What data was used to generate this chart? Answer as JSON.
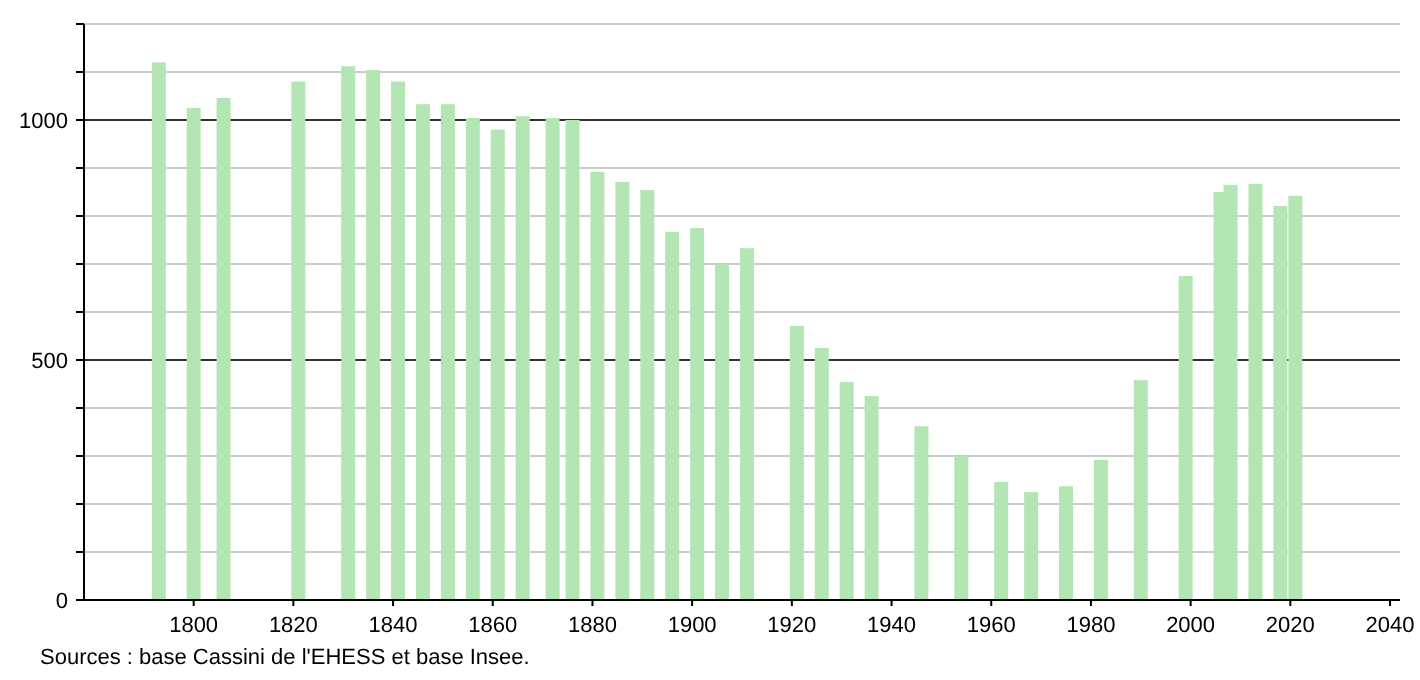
{
  "chart_data": {
    "type": "bar",
    "x": [
      1793,
      1800,
      1806,
      1821,
      1831,
      1836,
      1841,
      1846,
      1851,
      1856,
      1861,
      1866,
      1872,
      1876,
      1881,
      1886,
      1891,
      1896,
      1901,
      1906,
      1911,
      1921,
      1926,
      1931,
      1936,
      1946,
      1954,
      1962,
      1968,
      1975,
      1982,
      1990,
      1999,
      2006,
      2008,
      2013,
      2018,
      2021
    ],
    "values": [
      1120,
      1025,
      1046,
      1080,
      1112,
      1104,
      1080,
      1033,
      1033,
      1004,
      980,
      1008,
      1004,
      1000,
      892,
      871,
      854,
      767,
      775,
      700,
      733,
      571,
      525,
      454,
      425,
      362,
      300,
      246,
      225,
      237,
      292,
      458,
      675,
      850,
      865,
      867,
      821,
      842
    ],
    "color": "#b3e6b3",
    "xlim": [
      1778,
      2042
    ],
    "xticks": [
      1800,
      1820,
      1840,
      1860,
      1880,
      1900,
      1920,
      1940,
      1960,
      1980,
      2000,
      2020,
      2040
    ],
    "ylim": [
      0,
      1200
    ],
    "yticks": [
      0,
      {
        "value": 100,
        "label": null
      },
      {
        "value": 200,
        "label": null
      },
      {
        "value": 300,
        "label": null
      },
      {
        "value": 400,
        "label": null
      },
      500,
      {
        "value": 600,
        "label": null
      },
      {
        "value": 700,
        "label": null
      },
      {
        "value": 800,
        "label": null
      },
      {
        "value": 900,
        "label": null
      },
      1000,
      {
        "value": 1100,
        "label": null
      },
      {
        "value": 1200,
        "label": null
      }
    ],
    "grid": "y",
    "annotations": [
      "Sources : base Cassini de l'EHESS et base Insee."
    ]
  }
}
